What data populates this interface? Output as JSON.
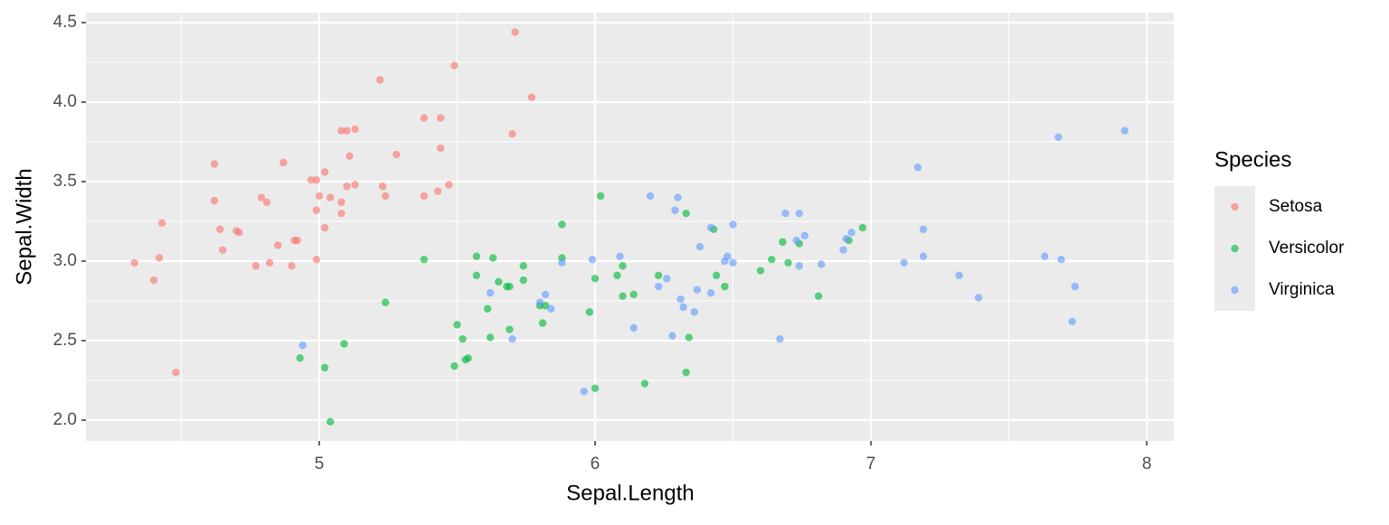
{
  "chart_data": {
    "type": "scatter",
    "x_label": "Sepal.Length",
    "y_label": "Sepal.Width",
    "xlim": [
      4.154,
      8.098
    ],
    "ylim": [
      1.869,
      4.5625
    ],
    "xticks": [
      5,
      6,
      7,
      8
    ],
    "yticks": [
      {
        "value": 2,
        "label": "2.0"
      },
      {
        "value": 2.5,
        "label": "2.5"
      },
      {
        "value": 3,
        "label": "3.0"
      },
      {
        "value": 3.5,
        "label": "3.5"
      },
      {
        "value": 4,
        "label": "4.0"
      },
      {
        "value": 4.5,
        "label": "4.5"
      }
    ],
    "grid": true,
    "legend": {
      "title": "Species",
      "position": "right"
    },
    "series": [
      {
        "name": "Setosa",
        "color": "#F8766D",
        "x": [
          4.33,
          4.4,
          4.42,
          4.43,
          4.48,
          4.62,
          4.62,
          4.64,
          4.65,
          4.7,
          4.71,
          4.77,
          4.79,
          4.81,
          4.82,
          4.85,
          4.87,
          4.9,
          4.91,
          4.92,
          4.97,
          4.99,
          4.99,
          4.99,
          5.0,
          5.02,
          5.02,
          5.04,
          5.08,
          5.08,
          5.08,
          5.1,
          5.1,
          5.11,
          5.13,
          5.13,
          5.22,
          5.23,
          5.24,
          5.28,
          5.38,
          5.38,
          5.43,
          5.44,
          5.44,
          5.47,
          5.49,
          5.7,
          5.71,
          5.77
        ],
        "values": [
          2.99,
          2.88,
          3.02,
          3.24,
          2.3,
          3.61,
          3.38,
          3.2,
          3.07,
          3.19,
          3.18,
          2.97,
          3.4,
          3.37,
          2.99,
          3.1,
          3.62,
          2.97,
          3.13,
          3.13,
          3.51,
          3.51,
          3.32,
          3.01,
          3.41,
          3.56,
          3.21,
          3.4,
          3.3,
          3.37,
          3.82,
          3.82,
          3.47,
          3.66,
          3.83,
          3.48,
          4.14,
          3.47,
          3.41,
          3.67,
          3.9,
          3.41,
          3.44,
          3.9,
          3.71,
          3.48,
          4.23,
          3.8,
          4.44,
          4.03
        ]
      },
      {
        "name": "Versicolor",
        "color": "#00BA38",
        "x": [
          4.93,
          5.02,
          5.04,
          5.09,
          5.38,
          5.24,
          5.49,
          5.5,
          5.52,
          5.53,
          5.54,
          5.57,
          5.57,
          5.61,
          5.62,
          5.63,
          5.65,
          5.68,
          5.69,
          5.69,
          5.74,
          5.74,
          5.8,
          5.81,
          5.82,
          5.88,
          5.88,
          5.98,
          6.0,
          6.0,
          6.02,
          6.08,
          6.1,
          6.1,
          6.14,
          6.18,
          6.23,
          6.33,
          6.33,
          6.34,
          6.43,
          6.44,
          6.47,
          6.6,
          6.64,
          6.68,
          6.7,
          6.74,
          6.81,
          6.92,
          6.97
        ],
        "values": [
          2.39,
          2.33,
          1.99,
          2.48,
          3.01,
          2.74,
          2.34,
          2.6,
          2.51,
          2.38,
          2.39,
          3.03,
          2.91,
          2.7,
          2.52,
          3.02,
          2.87,
          2.84,
          2.84,
          2.57,
          2.97,
          2.88,
          2.72,
          2.61,
          2.72,
          3.23,
          3.02,
          2.68,
          2.89,
          2.2,
          3.41,
          2.91,
          2.97,
          2.78,
          2.79,
          2.23,
          2.91,
          3.3,
          2.3,
          2.52,
          3.2,
          2.91,
          2.84,
          2.94,
          3.01,
          3.12,
          2.99,
          3.11,
          2.78,
          3.13,
          3.21
        ]
      },
      {
        "name": "Virginica",
        "color": "#619CFF",
        "x": [
          4.94,
          5.7,
          5.8,
          5.82,
          5.84,
          5.88,
          5.62,
          5.96,
          5.99,
          6.09,
          6.14,
          6.2,
          6.23,
          6.26,
          6.28,
          6.29,
          6.3,
          6.31,
          6.32,
          6.36,
          6.37,
          6.38,
          6.42,
          6.42,
          6.47,
          6.48,
          6.5,
          6.5,
          6.67,
          6.69,
          6.73,
          6.74,
          6.74,
          6.76,
          6.82,
          6.9,
          6.91,
          6.93,
          7.12,
          7.17,
          7.19,
          7.19,
          7.32,
          7.39,
          7.63,
          7.68,
          7.69,
          7.73,
          7.74,
          7.92
        ],
        "values": [
          2.47,
          2.51,
          2.74,
          2.79,
          2.7,
          2.99,
          2.8,
          2.18,
          3.01,
          3.03,
          2.58,
          3.41,
          2.84,
          2.89,
          2.53,
          3.32,
          3.4,
          2.76,
          2.71,
          2.68,
          2.82,
          3.09,
          2.8,
          3.21,
          3.0,
          3.03,
          3.23,
          2.99,
          2.51,
          3.3,
          3.13,
          2.97,
          3.3,
          3.16,
          2.98,
          3.07,
          3.14,
          3.18,
          2.99,
          3.59,
          3.03,
          3.2,
          2.91,
          2.77,
          3.03,
          3.78,
          3.01,
          2.62,
          2.84,
          3.82
        ]
      }
    ]
  }
}
